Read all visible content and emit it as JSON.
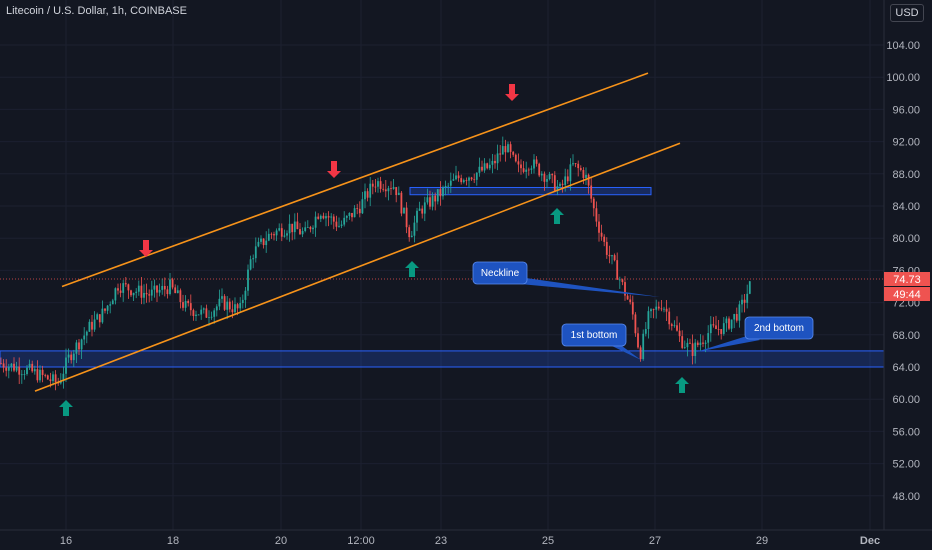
{
  "header": {
    "title": "Litecoin / U.S. Dollar, 1h, COINBASE",
    "currency": "USD"
  },
  "colors": {
    "background": "#131722",
    "up": "#26a69a",
    "down": "#ef5350",
    "channel": "#f7931a",
    "zone": "#2962ff",
    "arrow_up": "#089981",
    "arrow_down": "#f23645",
    "callout": "#1e53c0"
  },
  "chart_data": {
    "type": "candlestick",
    "title": "Litecoin / U.S. Dollar, 1h, COINBASE",
    "y_ticks": [
      "104.00",
      "100.00",
      "96.00",
      "92.00",
      "88.00",
      "84.00",
      "80.00",
      "76.00",
      "72.00",
      "68.00",
      "64.00",
      "60.00",
      "56.00",
      "52.00",
      "48.00"
    ],
    "x_ticks": [
      {
        "label": "16",
        "bold": false
      },
      {
        "label": "18",
        "bold": false
      },
      {
        "label": "20",
        "bold": false
      },
      {
        "label": "12:00",
        "bold": false
      },
      {
        "label": "23",
        "bold": false
      },
      {
        "label": "25",
        "bold": false
      },
      {
        "label": "27",
        "bold": false
      },
      {
        "label": "29",
        "bold": false
      },
      {
        "label": "Dec",
        "bold": true
      }
    ],
    "last_price": "74.73",
    "countdown": "49:44",
    "price_path": [
      [
        0,
        64.5
      ],
      [
        30,
        63.5
      ],
      [
        58,
        62.0
      ],
      [
        70,
        65.5
      ],
      [
        90,
        69.0
      ],
      [
        105,
        71.0
      ],
      [
        118,
        74.2
      ],
      [
        135,
        73.5
      ],
      [
        150,
        73.0
      ],
      [
        170,
        74.0
      ],
      [
        185,
        71.5
      ],
      [
        205,
        70.5
      ],
      [
        222,
        72.0
      ],
      [
        240,
        71.0
      ],
      [
        252,
        78.0
      ],
      [
        270,
        80.5
      ],
      [
        290,
        81.5
      ],
      [
        305,
        80.5
      ],
      [
        320,
        83.5
      ],
      [
        340,
        81.5
      ],
      [
        360,
        84.0
      ],
      [
        375,
        87.0
      ],
      [
        395,
        86.5
      ],
      [
        410,
        80.5
      ],
      [
        420,
        83.5
      ],
      [
        440,
        85.5
      ],
      [
        458,
        87.5
      ],
      [
        475,
        88.0
      ],
      [
        492,
        89.0
      ],
      [
        505,
        91.5
      ],
      [
        518,
        88.5
      ],
      [
        530,
        89.5
      ],
      [
        548,
        87.5
      ],
      [
        560,
        86.0
      ],
      [
        573,
        89.0
      ],
      [
        585,
        88.0
      ],
      [
        595,
        83.0
      ],
      [
        605,
        79.0
      ],
      [
        618,
        75.5
      ],
      [
        632,
        71.0
      ],
      [
        640,
        65.5
      ],
      [
        648,
        70.0
      ],
      [
        662,
        72.0
      ],
      [
        680,
        67.5
      ],
      [
        692,
        66.0
      ],
      [
        710,
        68.5
      ],
      [
        725,
        69.0
      ],
      [
        740,
        71.0
      ],
      [
        752,
        74.7
      ]
    ],
    "channel": {
      "upper": [
        [
          62,
          74.0
        ],
        [
          648,
          100.5
        ]
      ],
      "lower": [
        [
          35,
          61.0
        ],
        [
          680,
          91.8
        ]
      ]
    },
    "zones": [
      {
        "name": "support",
        "from": 64.0,
        "to": 66.0
      },
      {
        "name": "resistance",
        "from": 85.4,
        "to": 86.3
      }
    ],
    "annotations": [
      "Neckline",
      "1st bottom",
      "2nd bottom"
    ]
  }
}
